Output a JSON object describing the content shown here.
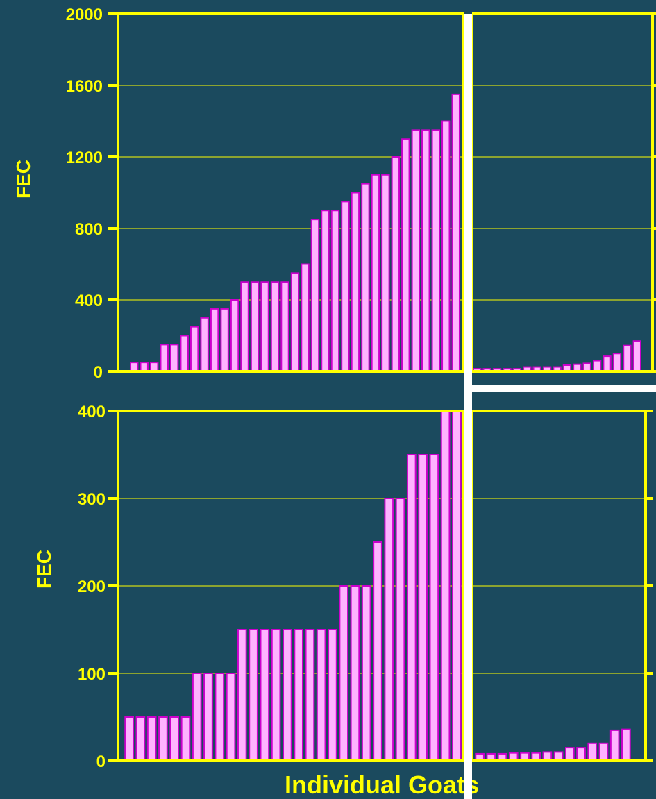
{
  "colors": {
    "background": "#1b4a5e",
    "axis": "#ffff00",
    "grid": "#ffff00",
    "bar_fill": "#ffb3ff",
    "bar_stroke": "#cc00cc",
    "divider": "#ffffff",
    "text": "#ffff00"
  },
  "chart_data": [
    {
      "type": "bar",
      "ylabel": "FEC",
      "ylim": [
        0,
        2000
      ],
      "yticks": [
        "0",
        "400",
        "800",
        "1200",
        "1600",
        "2000"
      ],
      "yticks_values": [
        0,
        400,
        800,
        1200,
        1600,
        2000
      ],
      "grid": true,
      "series": [
        {
          "values": [
            50,
            50,
            50,
            150,
            150,
            200,
            250,
            300,
            350,
            350,
            400,
            500,
            500,
            500,
            500,
            500,
            550,
            600,
            850,
            900,
            900,
            950,
            1000,
            1050,
            1100,
            1100,
            1200,
            1300,
            1350,
            1350,
            1350,
            1400,
            1550
          ]
        },
        {
          "values": [
            15,
            15,
            15,
            15,
            15,
            25,
            25,
            25,
            25,
            35,
            40,
            45,
            60,
            85,
            100,
            145,
            170
          ]
        }
      ]
    },
    {
      "type": "bar",
      "ylabel": "FEC",
      "xlabel": "Individual Goats",
      "ylim": [
        0,
        400
      ],
      "yticks": [
        "0",
        "100",
        "200",
        "300",
        "400"
      ],
      "yticks_values": [
        0,
        100,
        200,
        300,
        400
      ],
      "grid": true,
      "series": [
        {
          "values": [
            50,
            50,
            50,
            50,
            50,
            50,
            100,
            100,
            100,
            100,
            150,
            150,
            150,
            150,
            150,
            150,
            150,
            150,
            150,
            200,
            200,
            200,
            250,
            300,
            300,
            350,
            350,
            350,
            400,
            400
          ]
        },
        {
          "values": [
            8,
            8,
            8,
            9,
            9,
            9,
            10,
            10,
            15,
            15,
            20,
            20,
            35,
            36
          ]
        }
      ]
    }
  ]
}
